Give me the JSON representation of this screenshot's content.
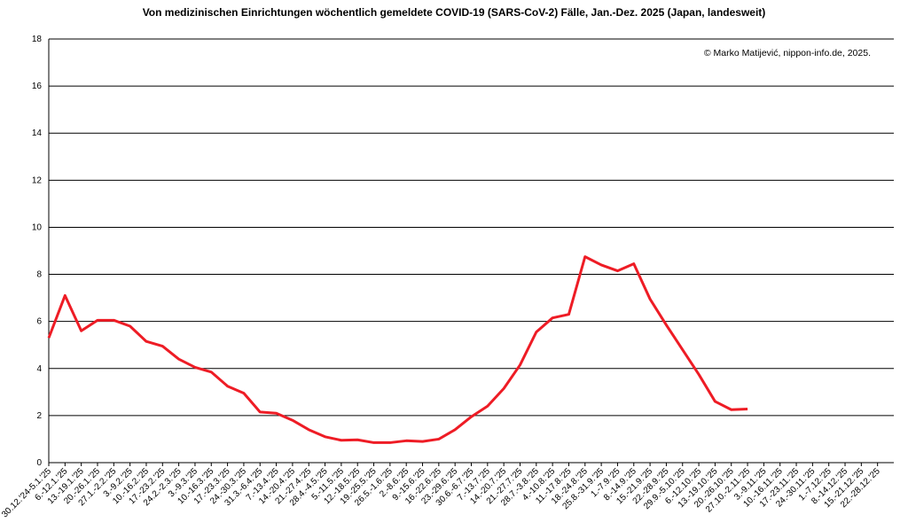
{
  "chart_data": {
    "type": "line",
    "title": "Von medizinischen Einrichtungen wöchentlich gemeldete COVID-19 (SARS-CoV-2) Fälle, Jan.-Dez. 2025 (Japan, landesweit)",
    "annotation": "© Marko Matijević, nippon-info.de, 2025.",
    "categories": [
      "30.12.'24-5.1.'25",
      "6.-12.1.'25",
      "13.-19.1.'25",
      "20.-26.1.'25",
      "27.1.-2.2.'25",
      "3.-9.2.'25",
      "10.-16.2.'25",
      "17.-23.2.'25",
      "24.2.-2.3.'25",
      "3.-9.3.'25",
      "10.-16.3.'25",
      "17.-23.3.'25",
      "24.-30.3.'25",
      "31.3.-6.4.'25",
      "7.-13.4.'25",
      "14.-20.4.'25",
      "21.-27.4.'25",
      "28.4.-4.5.'25",
      "5.-11.5.'25",
      "12.-18.5.'25",
      "19.-25.5.'25",
      "26.5.-1.6.'25",
      "2.-8.6.'25",
      "9.-15.6.'25",
      "16.-22.6.'25",
      "23.-29.6.'25",
      "30.6.-6.7.'25",
      "7.-13.7.'25",
      "14.-20.7.'25",
      "21.-27.7.'25",
      "28.7.-3.8.'25",
      "4.-10.8.'25",
      "11.-17.8.'25",
      "18.-24.8.'25",
      "25.8.-31.9.'25",
      "1.-7.9.'25",
      "8.-14.9.'25",
      "15.-21.9.'25",
      "22.-28.9.'25",
      "29.9.-5.10.'25",
      "6.-12.10.'25",
      "13.-19.10.'25",
      "20.-26.10.'25",
      "27.10.-2.11.'25",
      "3.-9.11.'25",
      "10.-16.11.'25",
      "17.-23.11.'25",
      "24.-30.11.'25",
      "1.-7.12.'25",
      "8.-14.12.'25",
      "15.-21.12.'25",
      "22.-28.12.'25"
    ],
    "series": [
      {
        "color": "#ee1c25",
        "values": [
          5.3,
          7.1,
          5.6,
          6.05,
          6.05,
          5.8,
          5.15,
          4.95,
          4.4,
          4.05,
          3.85,
          3.25,
          2.95,
          2.15,
          2.1,
          1.8,
          1.4,
          1.1,
          0.95,
          0.97,
          0.85,
          0.85,
          0.93,
          0.9,
          1.0,
          1.4,
          1.95,
          2.4,
          3.15,
          4.15,
          5.55,
          6.15,
          6.3,
          8.75,
          8.4,
          8.15,
          8.45,
          6.95,
          5.85,
          4.8,
          3.75,
          2.6,
          2.25,
          2.28,
          null,
          null,
          null,
          null,
          null,
          null,
          null,
          null
        ]
      }
    ],
    "ylim": [
      0,
      18
    ],
    "yticks": [
      0,
      2,
      4,
      6,
      8,
      10,
      12,
      14,
      16,
      18
    ],
    "grid": true
  }
}
